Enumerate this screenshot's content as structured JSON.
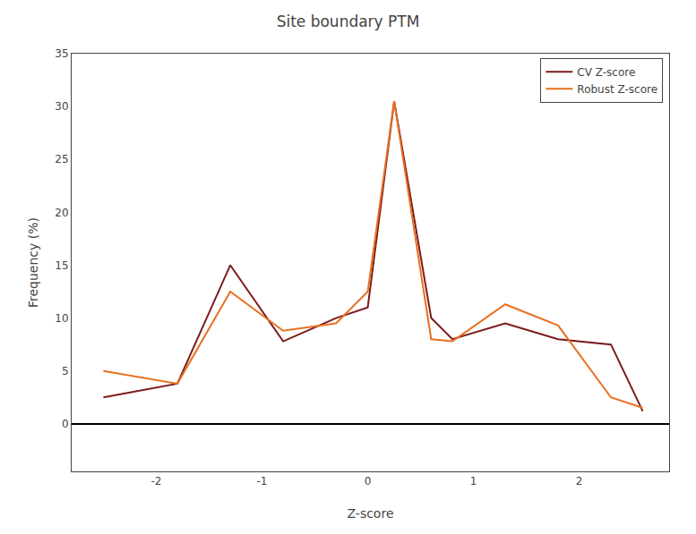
{
  "chart_data": {
    "type": "line",
    "title": "Site boundary PTM",
    "xlabel": "Z-score",
    "ylabel": "Frequency (%)",
    "x": [
      -2.5,
      -1.8,
      -1.3,
      -0.8,
      -0.3,
      0.0,
      0.25,
      0.6,
      0.8,
      1.3,
      1.8,
      2.3,
      2.6
    ],
    "series": [
      {
        "name": "CV Z-score",
        "color": "#7B1A1A",
        "values": [
          2.5,
          3.8,
          15.0,
          7.8,
          10.0,
          11.0,
          30.5,
          10.0,
          8.0,
          9.5,
          8.0,
          7.5,
          1.2
        ]
      },
      {
        "name": "Robust Z-score",
        "color": "#E87020",
        "values": [
          5.0,
          3.8,
          12.5,
          8.8,
          9.5,
          12.5,
          30.5,
          8.0,
          7.8,
          11.3,
          9.3,
          2.5,
          1.5
        ]
      }
    ],
    "xlim": [
      -2.8,
      2.85
    ],
    "xticks": [
      -2,
      -1,
      0,
      1,
      2
    ],
    "ylim": [
      -4.5,
      35
    ],
    "yticks": [
      0,
      5,
      10,
      15,
      20,
      25,
      30,
      35
    ],
    "grid": false,
    "legend": "upper right"
  }
}
